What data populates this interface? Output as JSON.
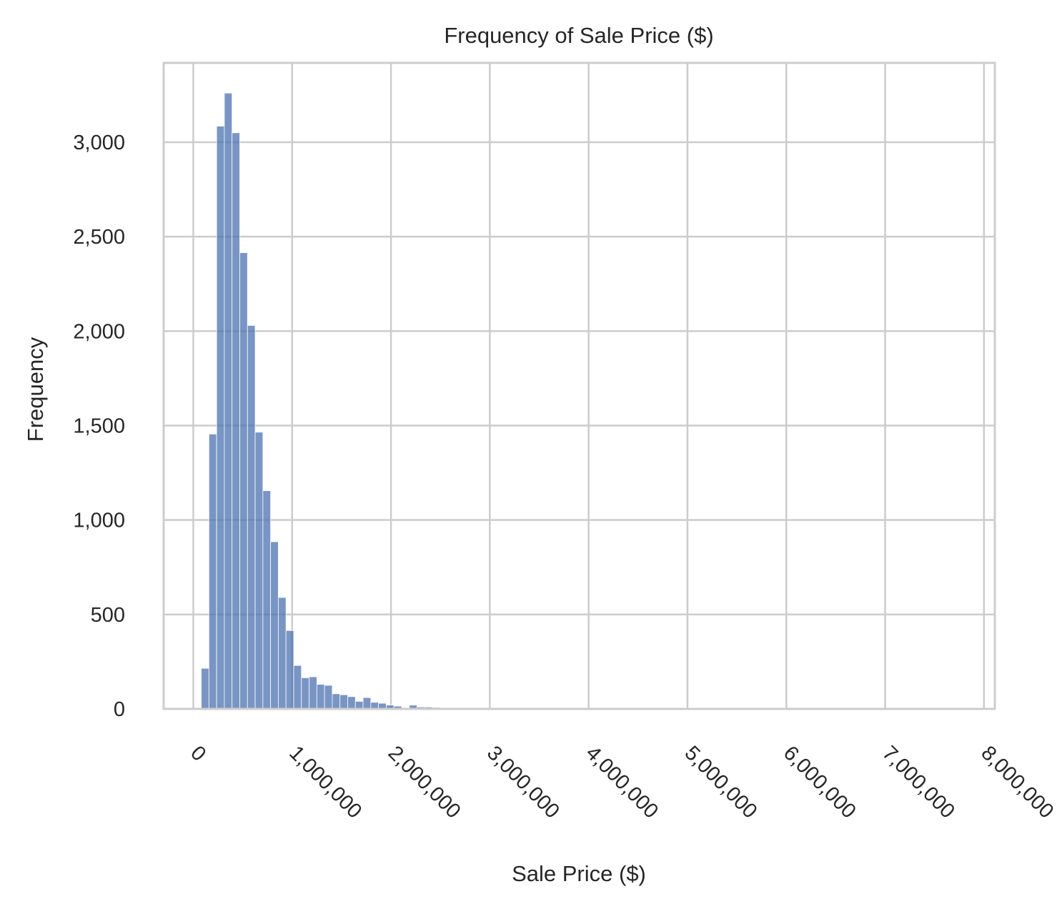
{
  "chart_data": {
    "type": "histogram",
    "title": "Frequency of Sale Price ($)",
    "xlabel": "Sale Price ($)",
    "ylabel": "Frequency",
    "xlim": [
      -300000,
      8110000
    ],
    "ylim": [
      0,
      3420
    ],
    "x_ticks": [
      0,
      1000000,
      2000000,
      3000000,
      4000000,
      5000000,
      6000000,
      7000000,
      8000000
    ],
    "x_tick_labels": [
      "0",
      "1,000,000",
      "2,000,000",
      "3,000,000",
      "4,000,000",
      "5,000,000",
      "6,000,000",
      "7,000,000",
      "8,000,000"
    ],
    "y_ticks": [
      0,
      500,
      1000,
      1500,
      2000,
      2500,
      3000
    ],
    "y_tick_labels": [
      "0",
      "500",
      "1,000",
      "1,500",
      "2,000",
      "2,500",
      "3,000"
    ],
    "grid": true,
    "bar_color": "#4c72b0",
    "bin_start": 80000,
    "bin_width": 78000,
    "counts": [
      215,
      1455,
      3085,
      3260,
      3050,
      2415,
      2030,
      1465,
      1155,
      885,
      590,
      415,
      230,
      165,
      170,
      130,
      125,
      80,
      75,
      65,
      40,
      60,
      35,
      30,
      20,
      15,
      5,
      20,
      10,
      10,
      8,
      7,
      3,
      3,
      2,
      2,
      2,
      2,
      1,
      1,
      1,
      1,
      1,
      1,
      1,
      1,
      1,
      1,
      1,
      1,
      1,
      1,
      1,
      1,
      1,
      1,
      1,
      1,
      1,
      1,
      1,
      1,
      1,
      1,
      1,
      1,
      1,
      1,
      1,
      1,
      1,
      1,
      1,
      1,
      1,
      1,
      1,
      1,
      1,
      1,
      1,
      1,
      1,
      1,
      1,
      1,
      1,
      1,
      1,
      1,
      1,
      1,
      1,
      1,
      1,
      1,
      1,
      1,
      1,
      1
    ]
  }
}
